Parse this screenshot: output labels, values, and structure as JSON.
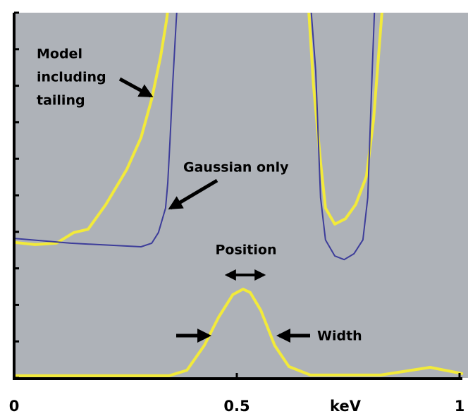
{
  "chart_data": {
    "type": "line",
    "x_label": "keV",
    "xlim": [
      0,
      1
    ],
    "xticks": [
      0,
      0.5,
      1
    ],
    "ylim": [
      0,
      10
    ],
    "yticks": [
      0,
      1,
      2,
      3,
      4,
      5,
      6,
      7,
      8,
      9,
      10
    ],
    "background": "#aeb2b8",
    "series": [
      {
        "color": "#f2ea3a",
        "x": [
          0,
          0.047,
          0.095,
          0.134,
          0.166,
          0.206,
          0.253,
          0.285,
          0.309,
          0.329,
          0.342,
          0.348
        ],
        "values": [
          3.71,
          3.65,
          3.69,
          3.98,
          4.07,
          4.75,
          5.71,
          6.58,
          7.64,
          8.8,
          9.77,
          10.35
        ]
      },
      {
        "color": "#3d3d9a",
        "x": [
          0,
          0.127,
          0.285,
          0.309,
          0.324,
          0.34,
          0.345,
          0.35,
          0.356,
          0.364,
          0.367
        ],
        "values": [
          3.82,
          3.69,
          3.59,
          3.69,
          3.98,
          4.65,
          5.33,
          6.49,
          8.03,
          9.77,
          10.35
        ]
      },
      {
        "color": "#f2ea3a",
        "x": [
          0.66,
          0.672,
          0.688,
          0.699,
          0.72,
          0.744,
          0.767,
          0.791,
          0.807,
          0.818,
          0.828
        ],
        "values": [
          10.35,
          8.03,
          5.91,
          4.65,
          4.21,
          4.36,
          4.75,
          5.52,
          7.07,
          8.8,
          10.35
        ]
      },
      {
        "color": "#3d3d9a",
        "x": [
          0.665,
          0.677,
          0.688,
          0.699,
          0.72,
          0.741,
          0.763,
          0.783,
          0.794,
          0.804,
          0.81
        ],
        "values": [
          10.35,
          8.42,
          4.94,
          3.78,
          3.34,
          3.24,
          3.4,
          3.78,
          4.94,
          8.42,
          10.35
        ]
      },
      {
        "color": "#f2ea3a",
        "x": [
          0,
          0.348,
          0.388,
          0.427,
          0.459,
          0.491,
          0.514,
          0.53,
          0.554,
          0.585,
          0.617,
          0.665,
          0.823,
          0.934,
          1.005
        ],
        "values": [
          0.06,
          0.06,
          0.21,
          0.89,
          1.66,
          2.28,
          2.43,
          2.34,
          1.85,
          0.89,
          0.31,
          0.08,
          0.08,
          0.29,
          0.12
        ]
      }
    ],
    "annotations": {
      "model": [
        "Model",
        "including",
        "tailing"
      ],
      "gaussian": "Gaussian only",
      "position": "Position",
      "width": "Width"
    }
  }
}
